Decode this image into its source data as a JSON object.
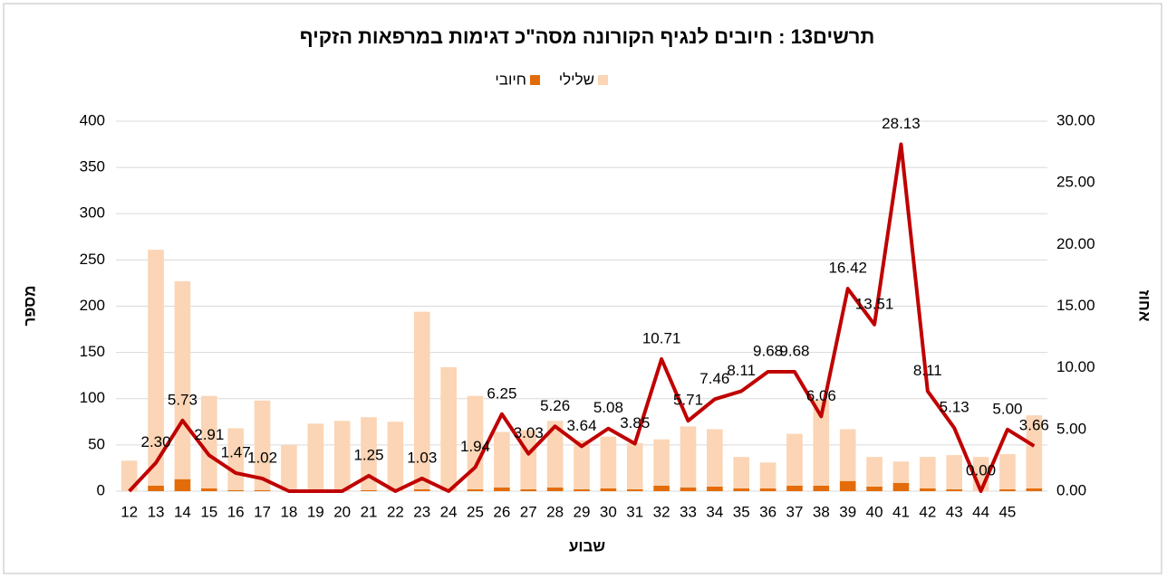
{
  "chart_data": {
    "type": "bar",
    "title": "תרשים13 : חיובים לנגיף הקורונה מסה\"כ דגימות במרפאות הזקיף",
    "x_label": "שבוע",
    "y_label": "מספר",
    "y2_label": "אחוז",
    "categories": [
      "12",
      "13",
      "14",
      "15",
      "16",
      "17",
      "18",
      "19",
      "20",
      "21",
      "22",
      "23",
      "24",
      "25",
      "26",
      "27",
      "28",
      "29",
      "30",
      "31",
      "32",
      "33",
      "34",
      "35",
      "36",
      "37",
      "38",
      "39",
      "40",
      "41",
      "42",
      "43",
      "44",
      "45",
      null
    ],
    "stacked": true,
    "series": [
      {
        "name": "חיובי",
        "color": "#e36c09",
        "values": [
          0,
          6,
          13,
          3,
          1,
          1,
          0,
          0,
          0,
          1,
          0,
          2,
          0,
          2,
          4,
          2,
          4,
          2,
          3,
          2,
          6,
          4,
          5,
          3,
          3,
          6,
          6,
          11,
          5,
          9,
          3,
          2,
          0,
          2,
          3
        ]
      },
      {
        "name": "שלילי",
        "color": "#fbd5b5",
        "values": [
          33,
          255,
          214,
          100,
          67,
          97,
          50,
          73,
          76,
          79,
          75,
          192,
          134,
          101,
          60,
          64,
          72,
          53,
          56,
          50,
          50,
          66,
          62,
          34,
          28,
          56,
          93,
          56,
          32,
          23,
          34,
          37,
          37,
          38,
          79
        ]
      }
    ],
    "line_series": {
      "color": "#c00000",
      "axis": "y2",
      "values": [
        0,
        2.3,
        5.73,
        2.91,
        1.47,
        1.02,
        0,
        0,
        0,
        1.25,
        0,
        1.03,
        0,
        1.94,
        6.25,
        3.03,
        5.26,
        3.64,
        5.08,
        3.85,
        10.71,
        5.71,
        7.46,
        8.11,
        9.68,
        9.68,
        6.06,
        16.42,
        13.51,
        28.13,
        8.11,
        5.13,
        0,
        5,
        3.66
      ],
      "value_labels": [
        null,
        "2.30",
        "5.73",
        "2.91",
        "1.47",
        "1.02",
        null,
        null,
        null,
        "1.25",
        null,
        "1.03",
        null,
        "1.94",
        "6.25",
        "3.03",
        "5.26",
        "3.64",
        "5.08",
        "3.85",
        "10.71",
        "5.71",
        "7.46",
        "8.11",
        "9.68",
        "9.68",
        "6.06",
        "16.42",
        "13.51",
        "28.13",
        "8.11",
        "5.13",
        "0.00",
        "5.00",
        "3.66"
      ]
    },
    "ylim": [
      0,
      400
    ],
    "yticks": [
      0,
      50,
      100,
      150,
      200,
      250,
      300,
      350,
      400
    ],
    "y2lim": [
      0,
      30
    ],
    "y2ticks": [
      {
        "value": 0,
        "label": "0.00"
      },
      {
        "value": 5,
        "label": "5.00"
      },
      {
        "value": 10,
        "label": "10.00"
      },
      {
        "value": 15,
        "label": "15.00"
      },
      {
        "value": 20,
        "label": "20.00"
      },
      {
        "value": 25,
        "label": "25.00"
      },
      {
        "value": 30,
        "label": "30.00"
      }
    ],
    "grid": true,
    "legend": "top"
  }
}
